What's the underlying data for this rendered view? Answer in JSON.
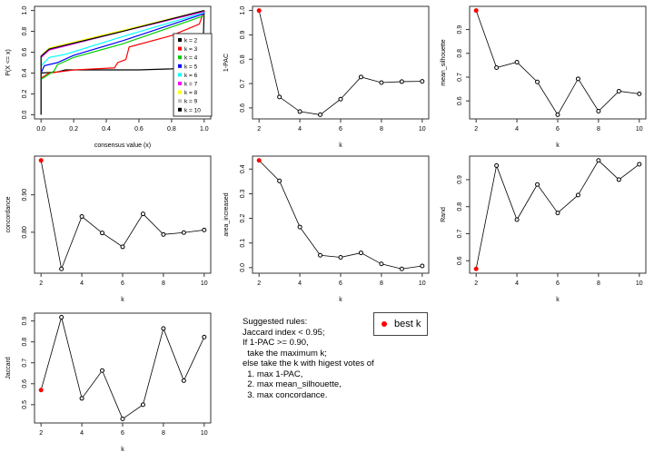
{
  "chart_data": [
    {
      "type": "line",
      "id": "ecdf",
      "xlabel": "consensus value (x)",
      "ylabel": "P(X <= x)",
      "xlim": [
        0,
        1
      ],
      "ylim": [
        0,
        1
      ],
      "xticks": [
        "0.0",
        "0.2",
        "0.4",
        "0.6",
        "0.8",
        "1.0"
      ],
      "yticks": [
        "0.0",
        "0.2",
        "0.4",
        "0.6",
        "0.8",
        "1.0"
      ],
      "legend": "right",
      "series": [
        {
          "name": "k = 2",
          "color": "#000000",
          "points": [
            [
              0,
              0
            ],
            [
              0,
              0.4
            ],
            [
              0.1,
              0.41
            ],
            [
              0.15,
              0.43
            ],
            [
              0.6,
              0.43
            ],
            [
              0.8,
              0.44
            ],
            [
              0.97,
              0.46
            ],
            [
              0.99,
              0.5
            ],
            [
              1,
              1
            ]
          ]
        },
        {
          "name": "k = 3",
          "color": "#ff0000",
          "points": [
            [
              0,
              0
            ],
            [
              0,
              0.35
            ],
            [
              0.05,
              0.4
            ],
            [
              0.2,
              0.43
            ],
            [
              0.45,
              0.45
            ],
            [
              0.47,
              0.5
            ],
            [
              0.52,
              0.53
            ],
            [
              0.54,
              0.65
            ],
            [
              0.8,
              0.76
            ],
            [
              0.97,
              0.87
            ],
            [
              1,
              1
            ]
          ]
        },
        {
          "name": "k = 4",
          "color": "#00cd00",
          "points": [
            [
              0,
              0
            ],
            [
              0,
              0.34
            ],
            [
              0.08,
              0.42
            ],
            [
              0.1,
              0.48
            ],
            [
              0.2,
              0.55
            ],
            [
              0.5,
              0.68
            ],
            [
              1,
              0.95
            ]
          ]
        },
        {
          "name": "k = 5",
          "color": "#0000ff",
          "points": [
            [
              0,
              0
            ],
            [
              0,
              0.4
            ],
            [
              0.02,
              0.47
            ],
            [
              0.1,
              0.5
            ],
            [
              0.2,
              0.57
            ],
            [
              0.5,
              0.71
            ],
            [
              1,
              0.97
            ]
          ]
        },
        {
          "name": "k = 6",
          "color": "#00ffff",
          "points": [
            [
              0,
              0
            ],
            [
              0,
              0.47
            ],
            [
              0.05,
              0.55
            ],
            [
              0.15,
              0.58
            ],
            [
              0.5,
              0.75
            ],
            [
              1,
              0.98
            ]
          ]
        },
        {
          "name": "k = 7",
          "color": "#ff00ff",
          "points": [
            [
              0,
              0
            ],
            [
              0,
              0.55
            ],
            [
              0.05,
              0.62
            ],
            [
              0.2,
              0.68
            ],
            [
              0.5,
              0.8
            ],
            [
              1,
              0.99
            ]
          ]
        },
        {
          "name": "k = 8",
          "color": "#ffff00",
          "points": [
            [
              0,
              0
            ],
            [
              0,
              0.57
            ],
            [
              0.05,
              0.64
            ],
            [
              0.5,
              0.81
            ],
            [
              1,
              1
            ]
          ]
        },
        {
          "name": "k = 9",
          "color": "#bebebe",
          "points": [
            [
              0,
              0
            ],
            [
              0,
              0.57
            ],
            [
              0.05,
              0.63
            ],
            [
              0.5,
              0.8
            ],
            [
              1,
              1
            ]
          ]
        },
        {
          "name": "k = 10",
          "color": "#000000",
          "points": [
            [
              0,
              0
            ],
            [
              0,
              0.56
            ],
            [
              0.05,
              0.63
            ],
            [
              0.5,
              0.8
            ],
            [
              1,
              1
            ]
          ]
        }
      ]
    },
    {
      "type": "line",
      "id": "pac",
      "xlabel": "k",
      "ylabel": "1-PAC",
      "x": [
        2,
        3,
        4,
        5,
        6,
        7,
        8,
        9,
        10
      ],
      "values": [
        1.0,
        0.645,
        0.585,
        0.572,
        0.636,
        0.727,
        0.704,
        0.708,
        0.709
      ],
      "yticks": [
        "0.6",
        "0.7",
        "0.8",
        "0.9",
        "1.0"
      ],
      "best_k": 2
    },
    {
      "type": "line",
      "id": "silhouette",
      "xlabel": "k",
      "ylabel": "mean_silhouette",
      "x": [
        2,
        3,
        4,
        5,
        6,
        7,
        8,
        9,
        10
      ],
      "values": [
        0.98,
        0.74,
        0.763,
        0.68,
        0.542,
        0.693,
        0.557,
        0.641,
        0.63
      ],
      "yticks": [
        "0.6",
        "0.7",
        "0.8",
        "0.9"
      ],
      "best_k": 2
    },
    {
      "type": "line",
      "id": "concordance",
      "xlabel": "k",
      "ylabel": "concordance",
      "x": [
        2,
        3,
        4,
        5,
        6,
        7,
        8,
        9,
        10
      ],
      "values": [
        0.992,
        0.702,
        0.842,
        0.798,
        0.761,
        0.849,
        0.794,
        0.799,
        0.806
      ],
      "yticks": [
        "0.70",
        "0.80",
        "0.90",
        "1.00"
      ],
      "best_k": 2
    },
    {
      "type": "line",
      "id": "area",
      "xlabel": "k",
      "ylabel": "area_increased",
      "x": [
        2,
        3,
        4,
        5,
        6,
        7,
        8,
        9,
        10
      ],
      "values": [
        0.435,
        0.352,
        0.165,
        0.05,
        0.042,
        0.06,
        0.015,
        -0.005,
        0.007
      ],
      "yticks": [
        "0.0",
        "0.1",
        "0.2",
        "0.3",
        "0.4"
      ],
      "best_k": 2
    },
    {
      "type": "line",
      "id": "rand",
      "xlabel": "k",
      "ylabel": "Rand",
      "x": [
        2,
        3,
        4,
        5,
        6,
        7,
        8,
        9,
        10
      ],
      "values": [
        0.57,
        0.952,
        0.752,
        0.882,
        0.777,
        0.843,
        0.971,
        0.9,
        0.957
      ],
      "yticks": [
        "0.6",
        "0.7",
        "0.8",
        "0.9"
      ],
      "best_k": 2
    },
    {
      "type": "line",
      "id": "jaccard",
      "xlabel": "k",
      "ylabel": "Jaccard",
      "x": [
        2,
        3,
        4,
        5,
        6,
        7,
        8,
        9,
        10
      ],
      "values": [
        0.57,
        0.918,
        0.53,
        0.663,
        0.432,
        0.5,
        0.864,
        0.615,
        0.823
      ],
      "yticks": [
        "0.5",
        "0.6",
        "0.7",
        "0.8",
        "0.9"
      ],
      "best_k": 2
    }
  ],
  "xticks_k": [
    "2",
    "4",
    "6",
    "8",
    "10"
  ],
  "best_color": "#ff0000",
  "rules": {
    "text": "Suggested rules:\nJaccard index < 0.95;\nIf 1-PAC >= 0.90,\n  take the maximum k;\nelse take the k with higest votes of\n  1. max 1-PAC,\n  2. max mean_silhouette,\n  3. max concordance."
  },
  "legend_best": {
    "label": "best k"
  }
}
